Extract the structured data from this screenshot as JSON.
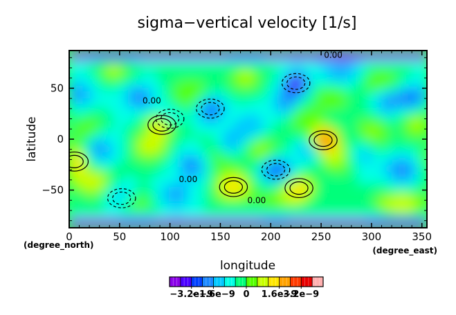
{
  "chart_data": {
    "type": "heatmap",
    "title": "sigma−vertical velocity [1/s]",
    "xlabel": "longitude",
    "ylabel": "latitude",
    "x_unit": "(degree_east)",
    "y_unit": "(degree_north)",
    "xlim": [
      0,
      355
    ],
    "ylim": [
      -87,
      87
    ],
    "x_ticks": [
      0,
      50,
      100,
      150,
      200,
      250,
      300,
      350
    ],
    "y_ticks": [
      -50,
      0,
      50
    ],
    "contour_labels": [
      {
        "text": "0.00",
        "lon": 82,
        "lat": 35
      },
      {
        "text": "0.00",
        "lon": 186,
        "lat": -63
      },
      {
        "text": "0.00",
        "lon": 262,
        "lat": 80
      },
      {
        "text": "0.00",
        "lon": 118,
        "lat": -42
      }
    ],
    "colorbar": {
      "colors": [
        "#8a00e8",
        "#4a00ff",
        "#0040ff",
        "#1a88ff",
        "#00c8ff",
        "#00ffe6",
        "#00ff7a",
        "#55ff00",
        "#c8ff00",
        "#ffe600",
        "#ffa200",
        "#ff3a00",
        "#e80000",
        "#ffb0b0"
      ],
      "tick_labels": [
        "−3.2e−9",
        "−1.6e−9",
        "0",
        "1.6e−9",
        "3.2e−9"
      ]
    },
    "field_extremes": [
      {
        "lon": 252,
        "lat": -1,
        "sign": "positive"
      },
      {
        "lon": 92,
        "lat": 14,
        "sign": "positive"
      },
      {
        "lon": 5,
        "lat": -22,
        "sign": "positive"
      },
      {
        "lon": 163,
        "lat": -47,
        "sign": "positive"
      },
      {
        "lon": 228,
        "lat": -48,
        "sign": "positive"
      },
      {
        "lon": 225,
        "lat": 55,
        "sign": "negative"
      },
      {
        "lon": 140,
        "lat": 30,
        "sign": "negative"
      },
      {
        "lon": 100,
        "lat": 20,
        "sign": "negative"
      },
      {
        "lon": 205,
        "lat": -30,
        "sign": "negative"
      },
      {
        "lon": 52,
        "lat": -58,
        "sign": "negative"
      }
    ]
  }
}
